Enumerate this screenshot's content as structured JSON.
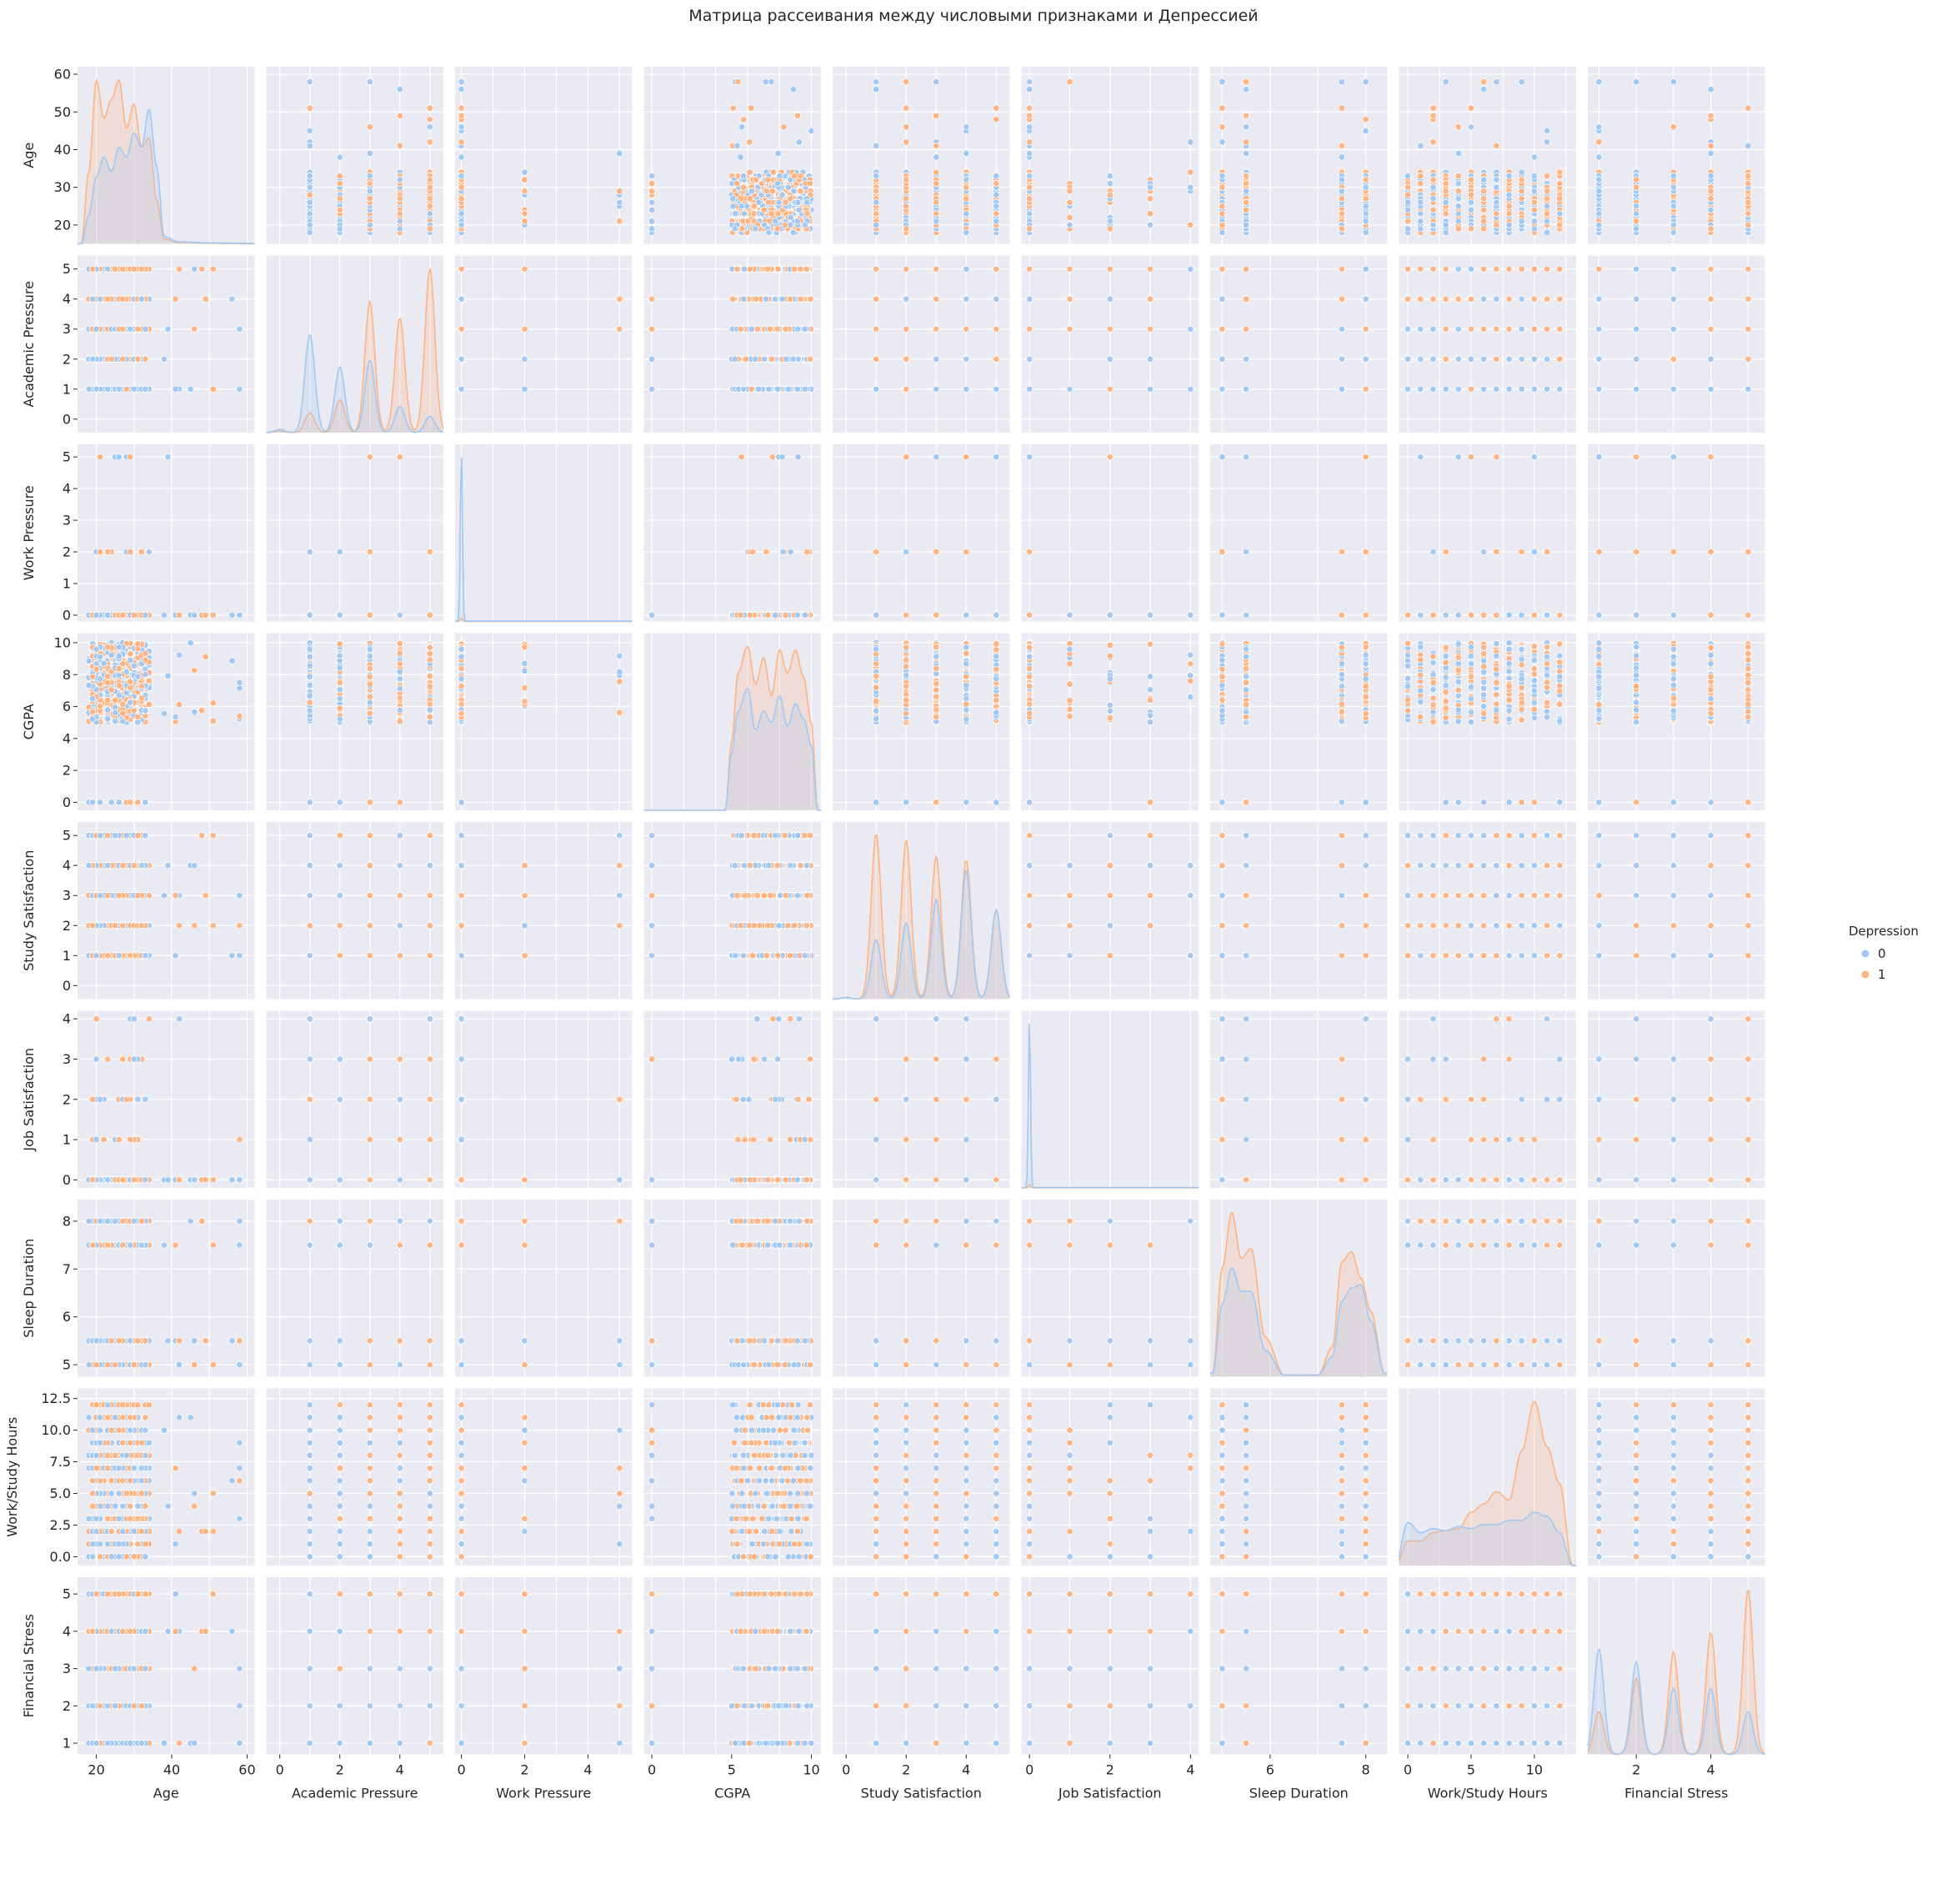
{
  "chart_data": {
    "type": "scatter",
    "title": "Матрица рассеивания между числовыми признаками и Депрессией",
    "grid": true,
    "legend": {
      "title": "Depression",
      "position": "right",
      "entries": [
        {
          "label": "0",
          "color": "#a1c9f4"
        },
        {
          "label": "1",
          "color": "#ffb482"
        }
      ]
    },
    "colors": {
      "0": "#a1c9f4",
      "1": "#ffb482",
      "panel_bg": "#eaeaf2",
      "grid": "#ffffff"
    },
    "variables": [
      {
        "name": "Age",
        "range": [
          15,
          62
        ],
        "ticks": [
          20,
          30,
          40,
          50,
          60
        ],
        "x_tick_labels": [
          "20",
          "40",
          "60"
        ]
      },
      {
        "name": "Academic Pressure",
        "range": [
          -0.45,
          5.45
        ],
        "ticks": [
          0,
          1,
          2,
          3,
          4,
          5
        ],
        "x_tick_labels": [
          "0",
          "2",
          "4"
        ]
      },
      {
        "name": "Work Pressure",
        "range": [
          -0.2,
          5.4
        ],
        "ticks": [
          0,
          1,
          2,
          3,
          4,
          5
        ],
        "x_tick_labels": [
          "0",
          "2",
          "4"
        ]
      },
      {
        "name": "CGPA",
        "range": [
          -0.5,
          10.6
        ],
        "ticks": [
          0,
          2,
          4,
          6,
          8,
          10
        ],
        "x_tick_labels": [
          "0",
          "5",
          "10"
        ]
      },
      {
        "name": "Study Satisfaction",
        "range": [
          -0.45,
          5.45
        ],
        "ticks": [
          0,
          1,
          2,
          3,
          4,
          5
        ],
        "x_tick_labels": [
          "0",
          "2",
          "4"
        ]
      },
      {
        "name": "Job Satisfaction",
        "range": [
          -0.2,
          4.2
        ],
        "ticks": [
          0,
          1,
          2,
          3,
          4
        ],
        "x_tick_labels": [
          "0",
          "2",
          "4"
        ]
      },
      {
        "name": "Sleep Duration",
        "range": [
          4.75,
          8.45
        ],
        "ticks": [
          5,
          6,
          7,
          8
        ],
        "x_tick_labels": [
          "6",
          "8"
        ]
      },
      {
        "name": "Work/Study Hours",
        "range": [
          -0.7,
          13.3
        ],
        "ticks": [
          0.0,
          2.5,
          5.0,
          7.5,
          10.0,
          12.5
        ],
        "y_tick_labels": [
          "0.0",
          "2.5",
          "5.0",
          "7.5",
          "10.0",
          "12.5"
        ],
        "x_tick_labels": [
          "0",
          "5",
          "10"
        ]
      },
      {
        "name": "Financial Stress",
        "range": [
          0.7,
          5.45
        ],
        "ticks": [
          1,
          2,
          3,
          4,
          5
        ],
        "x_tick_labels": [
          "2",
          "4"
        ]
      }
    ],
    "distributions": {
      "Age": {
        "min": 18,
        "max": 34,
        "outliers": [
          [
            38,
            0
          ],
          [
            39,
            1
          ],
          [
            41,
            0
          ],
          [
            42,
            1
          ],
          [
            43,
            0
          ],
          [
            45,
            1
          ],
          [
            46,
            0
          ],
          [
            48,
            1
          ],
          [
            49,
            0
          ],
          [
            51,
            0
          ],
          [
            54,
            0
          ],
          [
            56,
            0
          ],
          [
            58,
            0
          ],
          [
            59,
            0
          ]
        ]
      },
      "Academic Pressure": {
        "values": [
          0,
          1,
          2,
          3,
          4,
          5
        ],
        "weights_0": [
          0.1,
          3.0,
          2.0,
          2.2,
          0.8,
          0.5
        ],
        "weights_1": [
          0.05,
          0.6,
          1.0,
          4.0,
          3.5,
          5.0
        ]
      },
      "Work Pressure": {
        "values": [
          0,
          2,
          5
        ],
        "mode": 0
      },
      "CGPA": {
        "min": 5.0,
        "max": 10.0,
        "zero_value": 0
      },
      "Study Satisfaction": {
        "values": [
          0,
          1,
          2,
          3,
          4,
          5
        ],
        "weights_0": [
          0.05,
          1.8,
          2.3,
          3.0,
          3.9,
          2.7
        ],
        "weights_1": [
          0.05,
          5.0,
          4.8,
          4.3,
          4.2,
          2.7
        ]
      },
      "Job Satisfaction": {
        "values": [
          0,
          1,
          2,
          3,
          4
        ],
        "mode": 0
      },
      "Sleep Duration": {
        "values": [
          5,
          5.5,
          7.5,
          8
        ]
      },
      "Work/Study Hours": {
        "values": [
          0,
          1,
          2,
          3,
          4,
          5,
          6,
          7,
          8,
          9,
          10,
          11,
          12
        ]
      },
      "Financial Stress": {
        "values": [
          1,
          2,
          3,
          4,
          5
        ],
        "weights_0": [
          3.2,
          2.8,
          2.0,
          2.0,
          1.3
        ],
        "weights_1": [
          1.3,
          2.3,
          3.1,
          3.7,
          5.0
        ]
      }
    },
    "diagonal_kde": {
      "Age": {
        "x": [
          16,
          18,
          20,
          22,
          24,
          26,
          28,
          30,
          32,
          34,
          36,
          38,
          42,
          50,
          62
        ],
        "y0": [
          0,
          0.6,
          1.4,
          1.8,
          1.5,
          2.0,
          1.8,
          2.3,
          2.0,
          2.8,
          1.6,
          0.15,
          0.04,
          0.02,
          0.01
        ],
        "y1": [
          0,
          1.5,
          3.4,
          2.6,
          3.0,
          3.4,
          2.4,
          2.9,
          2.0,
          2.2,
          0.9,
          0.1,
          0.03,
          0.01,
          0
        ]
      },
      "Academic Pressure": {
        "peaks0": [
          0.1,
          3.0,
          2.0,
          2.2,
          0.8,
          0.5
        ],
        "peaks1": [
          0.05,
          0.6,
          1.0,
          4.0,
          3.5,
          5.0
        ]
      },
      "Work Pressure": {
        "spike_at": 0
      },
      "CGPA": {
        "x": [
          4.6,
          5.0,
          5.4,
          6.0,
          6.5,
          7.0,
          7.5,
          8.0,
          8.5,
          9.0,
          9.5,
          10.0,
          10.4
        ],
        "y0": [
          0,
          1.5,
          2.6,
          3.2,
          2.1,
          2.6,
          2.3,
          3.0,
          2.2,
          2.8,
          2.4,
          1.7,
          0
        ],
        "y1": [
          0,
          1.8,
          3.6,
          4.3,
          3.3,
          4.0,
          3.0,
          4.2,
          3.6,
          4.2,
          3.5,
          2.3,
          0
        ]
      },
      "Study Satisfaction": {
        "peaks0": [
          0.05,
          1.8,
          2.3,
          3.0,
          3.9,
          2.7
        ],
        "peaks1": [
          0.05,
          5.0,
          4.8,
          4.3,
          4.2,
          2.7
        ]
      },
      "Job Satisfaction": {
        "spike_at": 0
      },
      "Sleep Duration": {
        "x": [
          4.8,
          5.0,
          5.2,
          5.4,
          5.6,
          5.9,
          6.3,
          7.0,
          7.3,
          7.5,
          7.7,
          7.9,
          8.1,
          8.4
        ],
        "y0": [
          0.1,
          2.2,
          3.3,
          2.6,
          2.6,
          0.8,
          0.05,
          0.05,
          0.6,
          2.3,
          2.7,
          2.8,
          1.7,
          0.1
        ],
        "y1": [
          0.1,
          3.3,
          5.0,
          3.6,
          3.9,
          1.2,
          0.05,
          0.05,
          0.9,
          3.5,
          3.8,
          3.0,
          2.0,
          0.1
        ]
      },
      "Work/Study Hours": {
        "x": [
          -1,
          0,
          1,
          2,
          3,
          4,
          5,
          6,
          7,
          8,
          9,
          10,
          11,
          12,
          13
        ],
        "y0": [
          0,
          1.05,
          0.8,
          0.9,
          0.85,
          0.95,
          0.9,
          1.0,
          1.0,
          1.1,
          1.1,
          1.3,
          1.2,
          0.8,
          0
        ],
        "y1": [
          0,
          0.6,
          0.6,
          0.8,
          0.85,
          0.9,
          1.3,
          1.5,
          1.8,
          1.6,
          2.8,
          4.0,
          2.9,
          2.0,
          0
        ]
      },
      "Financial Stress": {
        "peaks0": [
          3.2,
          2.8,
          2.0,
          2.0,
          1.3
        ],
        "peaks1": [
          1.3,
          2.3,
          3.1,
          3.7,
          5.0
        ]
      }
    }
  }
}
